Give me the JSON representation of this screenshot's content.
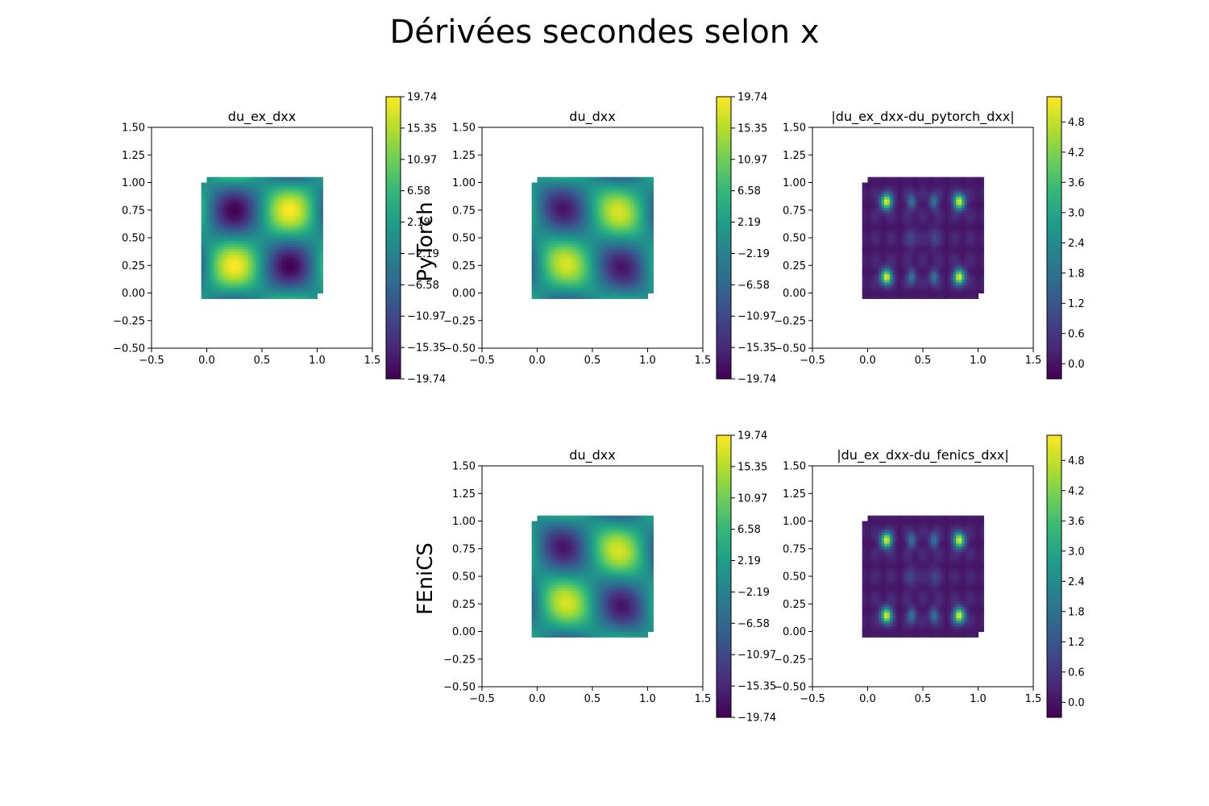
{
  "figure": {
    "title": "Dérivées secondes selon x",
    "row_labels": [
      "PyTorch",
      "FEniCS"
    ]
  },
  "chart_data": [
    {
      "type": "heatmap",
      "row": 1,
      "col": 1,
      "row_label": "PyTorch",
      "title": "du_ex_dxx",
      "field": "exact",
      "xlim": [
        -0.5,
        1.5
      ],
      "ylim": [
        -0.5,
        1.5
      ],
      "xticks": [
        "−0.5",
        "0.0",
        "0.5",
        "1.0",
        "1.5"
      ],
      "yticks": [
        "−0.50",
        "−0.25",
        "0.00",
        "0.25",
        "0.50",
        "0.75",
        "1.00",
        "1.25",
        "1.50"
      ],
      "colorbar": {
        "min": -19.74,
        "max": 19.74,
        "ticks": [
          "−19.74",
          "−15.35",
          "−10.97",
          "−6.58",
          "−2.19",
          "2.19",
          "6.58",
          "10.97",
          "15.35",
          "19.74"
        ]
      },
      "grid": false
    },
    {
      "type": "heatmap",
      "row": 1,
      "col": 2,
      "row_label": "PyTorch",
      "title": "du_dxx",
      "field": "approx",
      "xlim": [
        -0.5,
        1.5
      ],
      "ylim": [
        -0.5,
        1.5
      ],
      "xticks": [
        "−0.5",
        "0.0",
        "0.5",
        "1.0",
        "1.5"
      ],
      "yticks": [
        "−0.50",
        "−0.25",
        "0.00",
        "0.25",
        "0.50",
        "0.75",
        "1.00",
        "1.25",
        "1.50"
      ],
      "colorbar": {
        "min": -19.74,
        "max": 19.74,
        "ticks": [
          "−19.74",
          "−15.35",
          "−10.97",
          "−6.58",
          "−2.19",
          "2.19",
          "6.58",
          "10.97",
          "15.35",
          "19.74"
        ]
      },
      "grid": false
    },
    {
      "type": "heatmap",
      "row": 1,
      "col": 3,
      "row_label": "PyTorch",
      "title": "|du_ex_dxx-du_pytorch_dxx|",
      "field": "error",
      "xlim": [
        -0.5,
        1.5
      ],
      "ylim": [
        -0.5,
        1.5
      ],
      "xticks": [
        "−0.5",
        "0.0",
        "0.5",
        "1.0",
        "1.5"
      ],
      "yticks": [
        "−0.50",
        "−0.25",
        "0.00",
        "0.25",
        "0.50",
        "0.75",
        "1.00",
        "1.25",
        "1.50"
      ],
      "colorbar": {
        "min": -0.3,
        "max": 5.3,
        "ticks": [
          "0.0",
          "0.6",
          "1.2",
          "1.8",
          "2.4",
          "3.0",
          "3.6",
          "4.2",
          "4.8"
        ]
      },
      "grid": false
    },
    {
      "type": "heatmap",
      "row": 2,
      "col": 2,
      "row_label": "FEniCS",
      "title": "du_dxx",
      "field": "approx",
      "xlim": [
        -0.5,
        1.5
      ],
      "ylim": [
        -0.5,
        1.5
      ],
      "xticks": [
        "−0.5",
        "0.0",
        "0.5",
        "1.0",
        "1.5"
      ],
      "yticks": [
        "−0.50",
        "−0.25",
        "0.00",
        "0.25",
        "0.50",
        "0.75",
        "1.00",
        "1.25",
        "1.50"
      ],
      "colorbar": {
        "min": -19.74,
        "max": 19.74,
        "ticks": [
          "−19.74",
          "−15.35",
          "−10.97",
          "−6.58",
          "−2.19",
          "2.19",
          "6.58",
          "10.97",
          "15.35",
          "19.74"
        ]
      },
      "grid": false
    },
    {
      "type": "heatmap",
      "row": 2,
      "col": 3,
      "row_label": "FEniCS",
      "title": "|du_ex_dxx-du_fenics_dxx|",
      "field": "error",
      "xlim": [
        -0.5,
        1.5
      ],
      "ylim": [
        -0.5,
        1.5
      ],
      "xticks": [
        "−0.5",
        "0.0",
        "0.5",
        "1.0",
        "1.5"
      ],
      "yticks": [
        "−0.50",
        "−0.25",
        "0.00",
        "0.25",
        "0.50",
        "0.75",
        "1.00",
        "1.25",
        "1.50"
      ],
      "colorbar": {
        "min": -0.3,
        "max": 5.3,
        "ticks": [
          "0.0",
          "0.6",
          "1.2",
          "1.8",
          "2.4",
          "3.0",
          "3.6",
          "4.2",
          "4.8"
        ]
      },
      "grid": false
    }
  ],
  "colors": {
    "colormap": "viridis",
    "stops": [
      "#440154",
      "#482878",
      "#3e4989",
      "#31688e",
      "#26828e",
      "#1f9e89",
      "#35b779",
      "#6ece58",
      "#b5de2b",
      "#fde725"
    ]
  }
}
